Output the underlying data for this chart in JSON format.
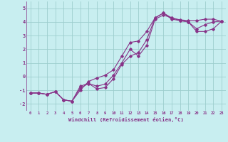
{
  "xlabel": "Windchill (Refroidissement éolien,°C)",
  "bg_color": "#c8eef0",
  "grid_color": "#9ecece",
  "line_color": "#883388",
  "xlim": [
    -0.5,
    23.5
  ],
  "ylim": [
    -2.5,
    5.5
  ],
  "xticks": [
    0,
    1,
    2,
    3,
    4,
    5,
    6,
    7,
    8,
    9,
    10,
    11,
    12,
    13,
    14,
    15,
    16,
    17,
    18,
    19,
    20,
    21,
    22,
    23
  ],
  "yticks": [
    -2,
    -1,
    0,
    1,
    2,
    3,
    4,
    5
  ],
  "line1_x": [
    0,
    1,
    2,
    3,
    4,
    5,
    6,
    7,
    8,
    9,
    10,
    11,
    12,
    13,
    14,
    15,
    16,
    17,
    18,
    19,
    20,
    21,
    22,
    23
  ],
  "line1_y": [
    -1.2,
    -1.2,
    -1.3,
    -1.1,
    -1.7,
    -1.8,
    -1.0,
    -0.35,
    -0.1,
    0.1,
    0.5,
    1.5,
    2.5,
    2.6,
    3.3,
    4.3,
    4.65,
    4.3,
    4.15,
    4.1,
    4.1,
    4.2,
    4.2,
    4.05
  ],
  "line2_x": [
    0,
    1,
    2,
    3,
    4,
    5,
    6,
    7,
    8,
    9,
    10,
    11,
    12,
    13,
    14,
    15,
    16,
    17,
    18,
    19,
    20,
    21,
    22,
    23
  ],
  "line2_y": [
    -1.2,
    -1.2,
    -1.3,
    -1.1,
    -1.7,
    -1.8,
    -0.7,
    -0.5,
    -0.9,
    -0.8,
    -0.15,
    0.9,
    1.5,
    1.75,
    2.7,
    4.3,
    4.65,
    4.2,
    4.1,
    4.0,
    3.3,
    3.3,
    3.5,
    4.05
  ],
  "line3_x": [
    0,
    1,
    2,
    3,
    4,
    5,
    6,
    7,
    8,
    9,
    10,
    11,
    12,
    13,
    14,
    15,
    16,
    17,
    18,
    19,
    20,
    21,
    22,
    23
  ],
  "line3_y": [
    -1.2,
    -1.2,
    -1.3,
    -1.1,
    -1.7,
    -1.8,
    -0.85,
    -0.5,
    -0.7,
    -0.55,
    0.1,
    1.0,
    2.0,
    1.5,
    2.3,
    4.2,
    4.5,
    4.3,
    4.1,
    4.0,
    3.5,
    3.8,
    4.0,
    4.05
  ]
}
